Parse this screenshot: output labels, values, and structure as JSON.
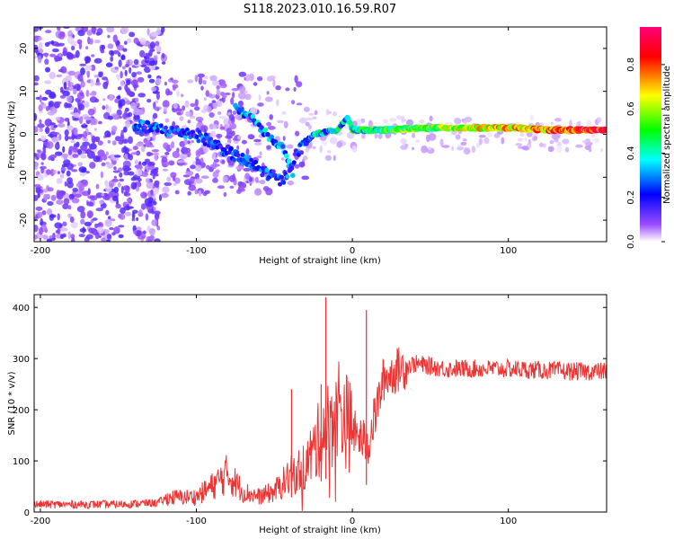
{
  "title": "S118.2023.010.16.59.R07",
  "chart_data": [
    {
      "type": "heatmap",
      "xlabel": "Height of straight line (km)",
      "ylabel": "Frequency (Hz)",
      "xlim": [
        -204,
        163
      ],
      "ylim": [
        -25,
        25
      ],
      "x_ticks": [
        -200,
        -100,
        0,
        100
      ],
      "y_ticks": [
        -20,
        -10,
        0,
        10,
        20
      ],
      "colorbar": {
        "label": "Normalized spectral amplitude",
        "range": [
          0.0,
          0.97
        ],
        "ticks": [
          0.0,
          0.2,
          0.4,
          0.6,
          0.8
        ],
        "colors": [
          "#ffffff",
          "#6a00ff",
          "#0000ff",
          "#00ffff",
          "#00ff00",
          "#ffff00",
          "#ff0000",
          "#ff0077"
        ]
      },
      "ridge": {
        "x": [
          -140,
          -100,
          -80,
          -60,
          -45,
          -35,
          -25,
          -10,
          -3,
          0,
          20,
          50,
          100,
          130,
          163
        ],
        "y": [
          2,
          0,
          -4,
          -8,
          -11,
          -4,
          0,
          1,
          4,
          1,
          1,
          1.5,
          1.5,
          1,
          1
        ]
      },
      "secondary_ridge": {
        "x": [
          -75,
          -65,
          -55,
          -45,
          -38
        ],
        "y": [
          6,
          4,
          0,
          -3,
          -9
        ]
      }
    },
    {
      "type": "line",
      "xlabel": "Height of straight line (km)",
      "ylabel": "SNR (10 * v/v)",
      "xlim": [
        -204,
        163
      ],
      "ylim": [
        0,
        425
      ],
      "x_ticks": [
        -200,
        -100,
        0,
        100
      ],
      "y_ticks": [
        0,
        100,
        200,
        300,
        400
      ],
      "color": "#ee3333",
      "envelope": {
        "x": [
          -204,
          -150,
          -125,
          -118,
          -100,
          -90,
          -80,
          -70,
          -60,
          -50,
          -40,
          -30,
          -20,
          -15,
          -10,
          0,
          10,
          20,
          30,
          40,
          60,
          100,
          140,
          163
        ],
        "y": [
          15,
          15,
          18,
          28,
          30,
          50,
          75,
          40,
          30,
          40,
          70,
          90,
          150,
          170,
          210,
          160,
          130,
          260,
          280,
          290,
          280,
          280,
          275,
          275
        ]
      },
      "spikes": [
        {
          "x": -39,
          "y": 240
        },
        {
          "x": -20,
          "y": 250
        },
        {
          "x": -17,
          "y": 420
        },
        {
          "x": 9,
          "y": 395
        }
      ]
    }
  ]
}
